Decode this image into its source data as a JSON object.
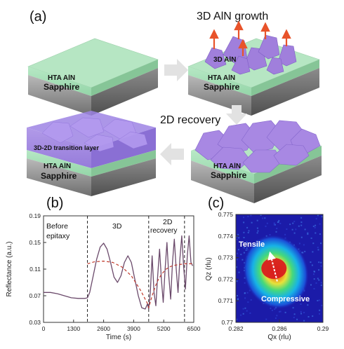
{
  "panels": {
    "a": {
      "letter": "(a)",
      "growth_label": "3D AlN growth",
      "recovery_label": "2D recovery",
      "blocks": [
        {
          "layers": [
            "HTA AlN",
            "Sapphire"
          ]
        },
        {
          "layers": [
            "3D AlN",
            "HTA AlN",
            "Sapphire"
          ]
        },
        {
          "layers": [
            "HTA AlN",
            "Sapphire"
          ]
        },
        {
          "layers": [
            "3D-2D transition layer",
            "HTA AlN",
            "Sapphire"
          ]
        }
      ]
    },
    "b": {
      "letter": "(b)",
      "regions": [
        "Before",
        "epitaxy",
        "3D",
        "2D",
        "recovery"
      ]
    },
    "c": {
      "letter": "(c)",
      "annotations": [
        "Tensile",
        "Compressive"
      ]
    }
  },
  "chart_data": [
    {
      "type": "line",
      "panel": "b",
      "xlabel": "Time (s)",
      "ylabel": "Reflectance (a.u.)",
      "xlim": [
        0,
        6500
      ],
      "ylim": [
        0.03,
        0.19
      ],
      "xticks": [
        0,
        1300,
        2600,
        3900,
        5200,
        6500
      ],
      "yticks": [
        0.03,
        0.07,
        0.11,
        0.15,
        0.19
      ],
      "region_boundaries_s": [
        1900,
        4550,
        6100
      ],
      "series": [
        {
          "style": "solid",
          "color": "#6b4a6b",
          "x": [
            0,
            300,
            600,
            900,
            1200,
            1500,
            1800,
            1900,
            2000,
            2150,
            2300,
            2450,
            2600,
            2750,
            2900,
            3050,
            3200,
            3350,
            3500,
            3650,
            3800,
            3950,
            4100,
            4250,
            4400,
            4500,
            4550,
            4620,
            4700,
            4780,
            4860,
            4940,
            5020,
            5100,
            5180,
            5260,
            5340,
            5420,
            5500,
            5580,
            5660,
            5740,
            5820,
            5900,
            5980,
            6060,
            6140,
            6220,
            6300,
            6380,
            6450
          ],
          "y": [
            0.075,
            0.075,
            0.073,
            0.07,
            0.067,
            0.066,
            0.066,
            0.067,
            0.075,
            0.1,
            0.125,
            0.143,
            0.149,
            0.14,
            0.12,
            0.098,
            0.09,
            0.1,
            0.12,
            0.13,
            0.12,
            0.095,
            0.07,
            0.052,
            0.05,
            0.058,
            0.05,
            0.075,
            0.13,
            0.075,
            0.055,
            0.1,
            0.14,
            0.095,
            0.06,
            0.11,
            0.15,
            0.1,
            0.065,
            0.12,
            0.155,
            0.11,
            0.075,
            0.125,
            0.16,
            0.115,
            0.08,
            0.13,
            0.16,
            0.12,
            0.115
          ]
        },
        {
          "style": "dashed",
          "color": "#c0392b",
          "x": [
            1900,
            2200,
            2600,
            3000,
            3400,
            3800,
            4200,
            4500,
            4550,
            4700,
            4900,
            5100,
            5300,
            5500,
            5700,
            5900,
            6100,
            6300,
            6450
          ],
          "y": [
            0.118,
            0.121,
            0.122,
            0.12,
            0.113,
            0.1,
            0.078,
            0.058,
            0.052,
            0.07,
            0.09,
            0.102,
            0.11,
            0.114,
            0.116,
            0.117,
            0.118,
            0.118,
            0.118
          ]
        }
      ]
    },
    {
      "type": "heatmap",
      "panel": "c",
      "xlabel": "Qx (rlu)",
      "ylabel": "Qz (rlu)",
      "xlim": [
        0.282,
        0.29
      ],
      "ylim": [
        0.77,
        0.775
      ],
      "xticks": [
        0.282,
        0.286,
        0.29
      ],
      "yticks": [
        0.77,
        0.771,
        0.772,
        0.773,
        0.774,
        0.775
      ],
      "colormap": [
        "#1b1ba8",
        "#1a4fd8",
        "#17b3e6",
        "#46d97a",
        "#e8e23a",
        "#f08a1e",
        "#d81e1e"
      ],
      "peak": {
        "qx": 0.2855,
        "qz": 0.7725
      },
      "strain_arrow": {
        "from": {
          "qx": 0.2858,
          "qz": 0.7719
        },
        "to": {
          "qx": 0.2852,
          "qz": 0.7731
        }
      }
    }
  ]
}
